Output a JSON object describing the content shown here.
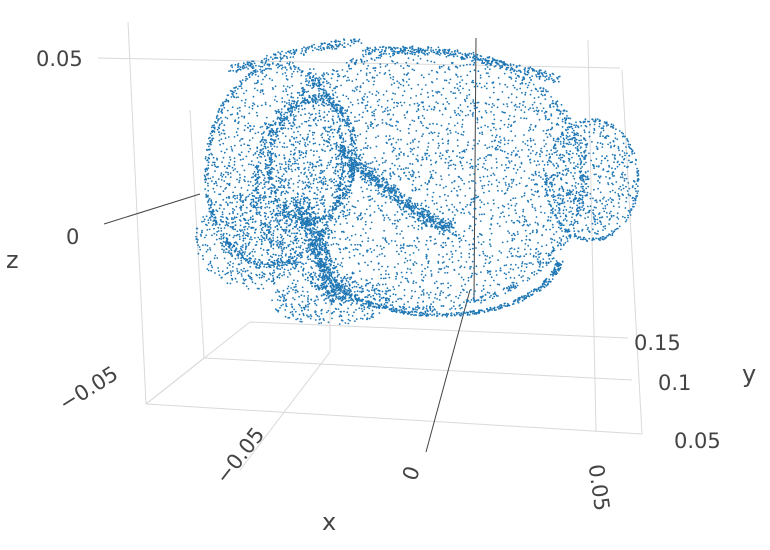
{
  "chart_data": {
    "type": "scatter3d",
    "title": "",
    "marker_color": "#1f77b4",
    "axes": {
      "x": {
        "title": "x",
        "ticks": [
          "−0.05",
          "0",
          "0.05"
        ],
        "range": [
          -0.09,
          0.07
        ]
      },
      "y": {
        "title": "y",
        "ticks": [
          "0.05",
          "0.1",
          "0.15"
        ],
        "range": [
          0.03,
          0.18
        ]
      },
      "z": {
        "title": "z",
        "ticks": [
          "−0.05",
          "0",
          "0.05"
        ],
        "range": [
          -0.08,
          0.06
        ]
      }
    },
    "grid": true,
    "legend": "none",
    "point_cloud": "dense 3D point cloud of a rodent brain surface with hippocampal structures"
  }
}
